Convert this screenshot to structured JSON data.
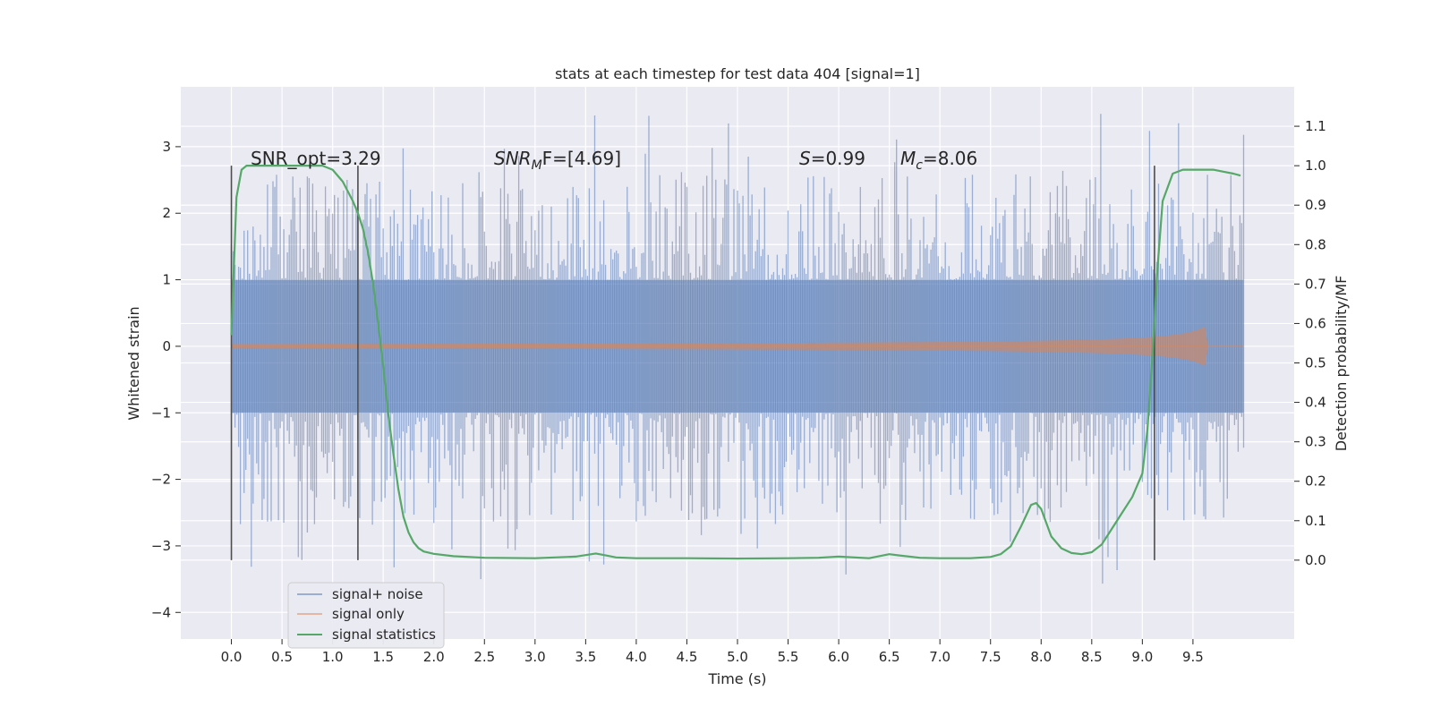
{
  "chart_data": {
    "type": "line",
    "title": "stats at each timestep for test data 404 [signal=1]",
    "xlabel": "Time (s)",
    "ylabel": "Whitened strain",
    "y2label": "Detection probability/MF",
    "xlim": [
      -0.5,
      10.5
    ],
    "ylim": [
      -4.4,
      3.9
    ],
    "y2lim": [
      -0.2,
      1.2
    ],
    "x_ticks": [
      "0.0",
      "0.5",
      "1.0",
      "1.5",
      "2.0",
      "2.5",
      "3.0",
      "3.5",
      "4.0",
      "4.5",
      "5.0",
      "5.5",
      "6.0",
      "6.5",
      "7.0",
      "7.5",
      "8.0",
      "8.5",
      "9.0",
      "9.5"
    ],
    "y_ticks": [
      "3",
      "2",
      "1",
      "0",
      "−1",
      "−2",
      "−3",
      "−4"
    ],
    "y2_ticks": [
      "1.1",
      "1.0",
      "0.9",
      "0.8",
      "0.7",
      "0.6",
      "0.5",
      "0.4",
      "0.3",
      "0.2",
      "0.1",
      "0.0"
    ],
    "grid": true,
    "legend_position": "bottom-left",
    "colors": {
      "noise": "#4c72b0",
      "signal": "#dd8452",
      "stats": "#55a868",
      "plot_bg": "#eaeaf2",
      "vline": "#4d4d4d"
    },
    "annotations": {
      "snr_opt": "SNR_opt=3.29",
      "snr_mf_italic": "SNR",
      "snr_mf_sub": "M",
      "snr_mf_rest": "F=[4.69]",
      "s_italic": "S",
      "s_rest": "=0.99",
      "mc_italic": "M",
      "mc_sub": "c",
      "mc_rest": "=8.06"
    },
    "vertical_lines_x": [
      0.0,
      1.25,
      9.12
    ],
    "series": [
      {
        "name": "signal+ noise",
        "axis": "left",
        "kind": "noise_band",
        "x_range": [
          0.0,
          10.0
        ],
        "typical_range": [
          -1.0,
          1.0
        ],
        "peak_range": [
          -3.6,
          3.5
        ]
      },
      {
        "name": "signal only",
        "axis": "left",
        "kind": "chirp",
        "x_range": [
          0.0,
          10.0
        ],
        "merger_x": 9.65,
        "peak_amplitude": 0.33
      },
      {
        "name": "signal statistics",
        "axis": "right",
        "kind": "line",
        "x": [
          0.0,
          0.05,
          0.1,
          0.15,
          0.2,
          0.3,
          0.5,
          0.7,
          0.9,
          1.0,
          1.1,
          1.2,
          1.25,
          1.3,
          1.35,
          1.4,
          1.45,
          1.5,
          1.55,
          1.6,
          1.65,
          1.7,
          1.75,
          1.8,
          1.85,
          1.9,
          2.0,
          2.2,
          2.5,
          3.0,
          3.4,
          3.6,
          3.7,
          3.8,
          4.0,
          4.5,
          5.0,
          5.5,
          5.8,
          6.0,
          6.3,
          6.5,
          6.6,
          6.8,
          7.0,
          7.3,
          7.5,
          7.6,
          7.7,
          7.8,
          7.9,
          7.95,
          8.0,
          8.1,
          8.2,
          8.3,
          8.4,
          8.5,
          8.6,
          8.7,
          8.8,
          8.9,
          9.0,
          9.05,
          9.1,
          9.15,
          9.2,
          9.3,
          9.4,
          9.5,
          9.6,
          9.7,
          9.8,
          9.9,
          9.97
        ],
        "values": [
          0.57,
          0.92,
          0.99,
          1.0,
          1.0,
          1.0,
          1.0,
          1.0,
          1.0,
          0.99,
          0.96,
          0.91,
          0.88,
          0.84,
          0.78,
          0.7,
          0.6,
          0.49,
          0.37,
          0.27,
          0.18,
          0.11,
          0.07,
          0.045,
          0.03,
          0.022,
          0.016,
          0.01,
          0.006,
          0.005,
          0.009,
          0.017,
          0.012,
          0.007,
          0.005,
          0.005,
          0.004,
          0.005,
          0.006,
          0.009,
          0.005,
          0.015,
          0.012,
          0.006,
          0.005,
          0.005,
          0.008,
          0.015,
          0.035,
          0.085,
          0.14,
          0.145,
          0.13,
          0.06,
          0.03,
          0.018,
          0.015,
          0.02,
          0.04,
          0.08,
          0.12,
          0.16,
          0.22,
          0.33,
          0.52,
          0.74,
          0.91,
          0.98,
          0.99,
          0.99,
          0.99,
          0.99,
          0.985,
          0.98,
          0.975
        ]
      }
    ]
  }
}
